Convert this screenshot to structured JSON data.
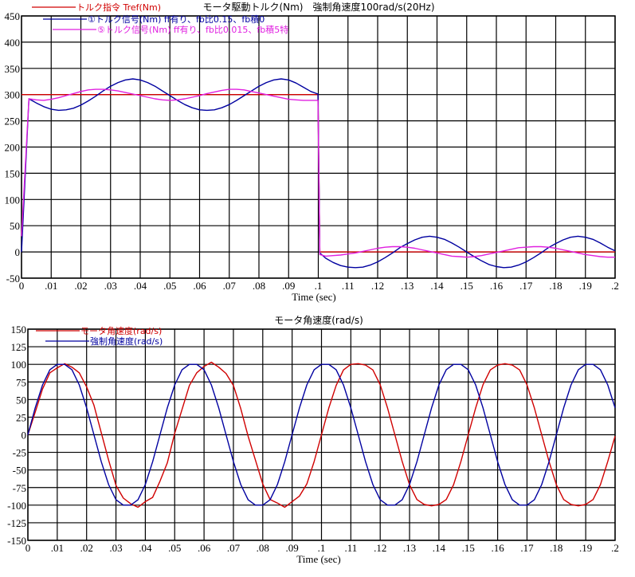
{
  "chart_data": [
    {
      "type": "line",
      "title": "モータ駆動トルク(Nm)　強制角速度100rad/s(20Hz)",
      "xlabel": "Time (sec)",
      "ylabel": "",
      "xlim": [
        0,
        0.2
      ],
      "ylim": [
        -50,
        450
      ],
      "grid": true,
      "legend_position": "top-left inside",
      "x_ticks": [
        "0",
        ".01",
        ".02",
        ".03",
        ".04",
        ".05",
        ".06",
        ".07",
        ".08",
        ".09",
        ".1",
        ".11",
        ".12",
        ".13",
        ".14",
        ".15",
        ".16",
        ".17",
        ".18",
        ".19",
        ".2"
      ],
      "y_ticks": [
        "450",
        "400",
        "350",
        "300",
        "250",
        "200",
        "150",
        "100",
        "50",
        "0",
        "-50"
      ],
      "x": [
        0,
        0.0025,
        0.005,
        0.0075,
        0.01,
        0.0125,
        0.015,
        0.0175,
        0.02,
        0.0225,
        0.025,
        0.0275,
        0.03,
        0.0325,
        0.035,
        0.0375,
        0.04,
        0.0425,
        0.045,
        0.0475,
        0.05,
        0.0525,
        0.055,
        0.0575,
        0.06,
        0.0625,
        0.065,
        0.0675,
        0.07,
        0.0725,
        0.075,
        0.0775,
        0.08,
        0.0825,
        0.085,
        0.0875,
        0.09,
        0.0925,
        0.095,
        0.0975,
        0.0999,
        0.1005,
        0.1025,
        0.105,
        0.1075,
        0.11,
        0.1125,
        0.115,
        0.1175,
        0.12,
        0.1225,
        0.125,
        0.1275,
        0.13,
        0.1325,
        0.135,
        0.1375,
        0.14,
        0.1425,
        0.145,
        0.1475,
        0.15,
        0.1525,
        0.155,
        0.1575,
        0.16,
        0.1625,
        0.165,
        0.1675,
        0.17,
        0.1725,
        0.175,
        0.1775,
        0.18,
        0.1825,
        0.185,
        0.1875,
        0.19,
        0.1925,
        0.195,
        0.1975,
        0.2
      ],
      "series": [
        {
          "name": "トルク指令 Tref(Nm)",
          "color": "#d00000",
          "values": [
            300,
            300,
            300,
            300,
            300,
            300,
            300,
            300,
            300,
            300,
            300,
            300,
            300,
            300,
            300,
            300,
            300,
            300,
            300,
            300,
            300,
            300,
            300,
            300,
            300,
            300,
            300,
            300,
            300,
            300,
            300,
            300,
            300,
            300,
            300,
            300,
            300,
            300,
            300,
            300,
            300,
            0,
            0,
            0,
            0,
            0,
            0,
            0,
            0,
            0,
            0,
            0,
            0,
            0,
            0,
            0,
            0,
            0,
            0,
            0,
            0,
            0,
            0,
            0,
            0,
            0,
            0,
            0,
            0,
            0,
            0,
            0,
            0,
            0,
            0,
            0,
            0,
            0,
            0,
            0,
            0,
            0
          ]
        },
        {
          "name": "①トルク信号(Nm) ff有り、fb比0.15、fb積0",
          "color": "#0000a0",
          "values": [
            0,
            292,
            284,
            277,
            272,
            270,
            271,
            274,
            280,
            288,
            297,
            307,
            316,
            323,
            328,
            330,
            328,
            323,
            316,
            307,
            298,
            289,
            281,
            275,
            271,
            270,
            271,
            275,
            281,
            289,
            298,
            307,
            316,
            323,
            328,
            330,
            328,
            322,
            314,
            306,
            301,
            -2,
            -12,
            -20,
            -26,
            -29,
            -30,
            -29,
            -25,
            -19,
            -11,
            -2,
            8,
            16,
            23,
            28,
            30,
            28,
            24,
            17,
            9,
            0,
            -9,
            -17,
            -24,
            -28,
            -30,
            -29,
            -25,
            -19,
            -11,
            -2,
            8,
            16,
            23,
            28,
            30,
            28,
            24,
            17,
            9,
            2
          ]
        },
        {
          "name": "⑤トルク信号(Nm) ff有り、fb比0.015、fb積5特",
          "color": "#e020e0",
          "values": [
            30,
            292,
            290,
            289,
            291,
            294,
            298,
            302,
            306,
            309,
            310,
            310,
            309,
            307,
            304,
            301,
            298,
            295,
            292,
            290,
            289,
            290,
            292,
            295,
            298,
            302,
            305,
            308,
            310,
            310,
            309,
            306,
            303,
            300,
            297,
            294,
            291,
            290,
            289,
            289,
            289,
            -5,
            -8,
            -7,
            -6,
            -4,
            -2,
            1,
            4,
            7,
            9,
            10,
            10,
            9,
            7,
            4,
            1,
            -2,
            -5,
            -8,
            -9,
            -10,
            -9,
            -7,
            -4,
            -1,
            2,
            5,
            8,
            9,
            10,
            10,
            9,
            7,
            4,
            1,
            -2,
            -5,
            -7,
            -9,
            -10,
            -10
          ]
        }
      ]
    },
    {
      "type": "line",
      "title": "モータ角速度(rad/s)",
      "xlabel": "Time (sec)",
      "ylabel": "",
      "xlim": [
        0,
        0.2
      ],
      "ylim": [
        -150,
        150
      ],
      "grid": true,
      "legend_position": "top-left inside",
      "x_ticks": [
        "0",
        ".01",
        ".02",
        ".03",
        ".04",
        ".05",
        ".06",
        ".07",
        ".08",
        ".09",
        ".1",
        ".11",
        ".12",
        ".13",
        ".14",
        ".15",
        ".16",
        ".17",
        ".18",
        ".19",
        ".2"
      ],
      "y_ticks": [
        "150",
        "125",
        "100",
        "75",
        "50",
        "25",
        "0",
        "-25",
        "-50",
        "-75",
        "-100",
        "-125",
        "-150"
      ],
      "x": [
        0,
        0.0025,
        0.005,
        0.0075,
        0.01,
        0.0125,
        0.015,
        0.0175,
        0.02,
        0.0225,
        0.025,
        0.0275,
        0.03,
        0.0325,
        0.035,
        0.0375,
        0.04,
        0.0425,
        0.045,
        0.0475,
        0.05,
        0.0525,
        0.055,
        0.0575,
        0.06,
        0.0625,
        0.065,
        0.0675,
        0.07,
        0.0725,
        0.075,
        0.0775,
        0.08,
        0.0825,
        0.085,
        0.0875,
        0.09,
        0.0925,
        0.095,
        0.0975,
        0.1,
        0.1025,
        0.105,
        0.1075,
        0.11,
        0.1125,
        0.115,
        0.1175,
        0.12,
        0.1225,
        0.125,
        0.1275,
        0.13,
        0.1325,
        0.135,
        0.1375,
        0.14,
        0.1425,
        0.145,
        0.1475,
        0.15,
        0.1525,
        0.155,
        0.1575,
        0.16,
        0.1625,
        0.165,
        0.1675,
        0.17,
        0.1725,
        0.175,
        0.1775,
        0.18,
        0.1825,
        0.185,
        0.1875,
        0.19,
        0.1925,
        0.195,
        0.1975,
        0.2
      ],
      "series": [
        {
          "name": "モータ角速度(rad/s)",
          "color": "#d00000",
          "values": [
            0,
            32,
            65,
            88,
            95,
            101,
            96,
            88,
            68,
            42,
            3,
            -36,
            -72,
            -90,
            -98,
            -103,
            -95,
            -89,
            -66,
            -40,
            2,
            36,
            70,
            88,
            97,
            103,
            96,
            87,
            70,
            37,
            -2,
            -36,
            -70,
            -92,
            -97,
            -103,
            -95,
            -87,
            -70,
            -38,
            0,
            38,
            70,
            92,
            100,
            101,
            99,
            92,
            71,
            38,
            0,
            -38,
            -71,
            -92,
            -99,
            -101,
            -99,
            -92,
            -71,
            -38,
            0,
            38,
            71,
            92,
            99,
            101,
            99,
            92,
            71,
            38,
            0,
            -38,
            -71,
            -92,
            -99,
            -101,
            -99,
            -92,
            -71,
            -38,
            -2
          ]
        },
        {
          "name": "強制角速度(rad/s)",
          "color": "#0000a0",
          "values": [
            0,
            38.3,
            70.7,
            92.4,
            100,
            100,
            92.4,
            70.7,
            38.3,
            0,
            -38.3,
            -70.7,
            -92.4,
            -100,
            -100,
            -92.4,
            -70.7,
            -38.3,
            0,
            38.3,
            70.7,
            92.4,
            100,
            100,
            92.4,
            70.7,
            38.3,
            0,
            -38.3,
            -70.7,
            -92.4,
            -100,
            -100,
            -92.4,
            -70.7,
            -38.3,
            0,
            38.3,
            70.7,
            92.4,
            100,
            100,
            92.4,
            70.7,
            38.3,
            0,
            -38.3,
            -70.7,
            -92.4,
            -100,
            -100,
            -92.4,
            -70.7,
            -38.3,
            0,
            38.3,
            70.7,
            92.4,
            100,
            100,
            92.4,
            70.7,
            38.3,
            0,
            -38.3,
            -70.7,
            -92.4,
            -100,
            -100,
            -92.4,
            -70.7,
            -38.3,
            0,
            38.3,
            70.7,
            92.4,
            100,
            100,
            92.4,
            70.7,
            38.3
          ]
        }
      ]
    }
  ]
}
